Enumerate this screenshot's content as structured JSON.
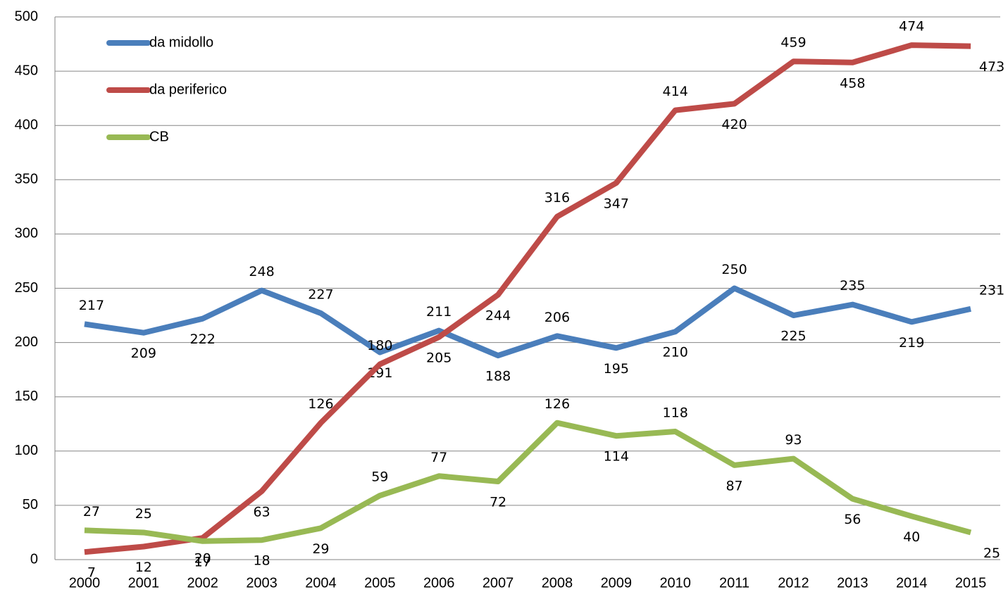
{
  "chart_data": {
    "type": "line",
    "categories": [
      "2000",
      "2001",
      "2002",
      "2003",
      "2004",
      "2005",
      "2006",
      "2007",
      "2008",
      "2009",
      "2010",
      "2011",
      "2012",
      "2013",
      "2014",
      "2015"
    ],
    "series": [
      {
        "name": "da midollo",
        "color": "#4a7ebb",
        "values": [
          217,
          209,
          222,
          248,
          227,
          191,
          211,
          188,
          206,
          195,
          210,
          250,
          225,
          235,
          219,
          231
        ]
      },
      {
        "name": "da periferico",
        "color": "#be4b48",
        "values": [
          7,
          12,
          20,
          63,
          126,
          180,
          205,
          244,
          316,
          347,
          414,
          420,
          459,
          458,
          474,
          473
        ]
      },
      {
        "name": "CB",
        "color": "#98b954",
        "values": [
          27,
          25,
          17,
          18,
          29,
          59,
          77,
          72,
          126,
          114,
          118,
          87,
          93,
          56,
          40,
          25
        ]
      }
    ],
    "ylim": [
      0,
      500
    ],
    "yticks": [
      0,
      50,
      100,
      150,
      200,
      250,
      300,
      350,
      400,
      450,
      500
    ],
    "grid": true,
    "legend": "top-left"
  }
}
